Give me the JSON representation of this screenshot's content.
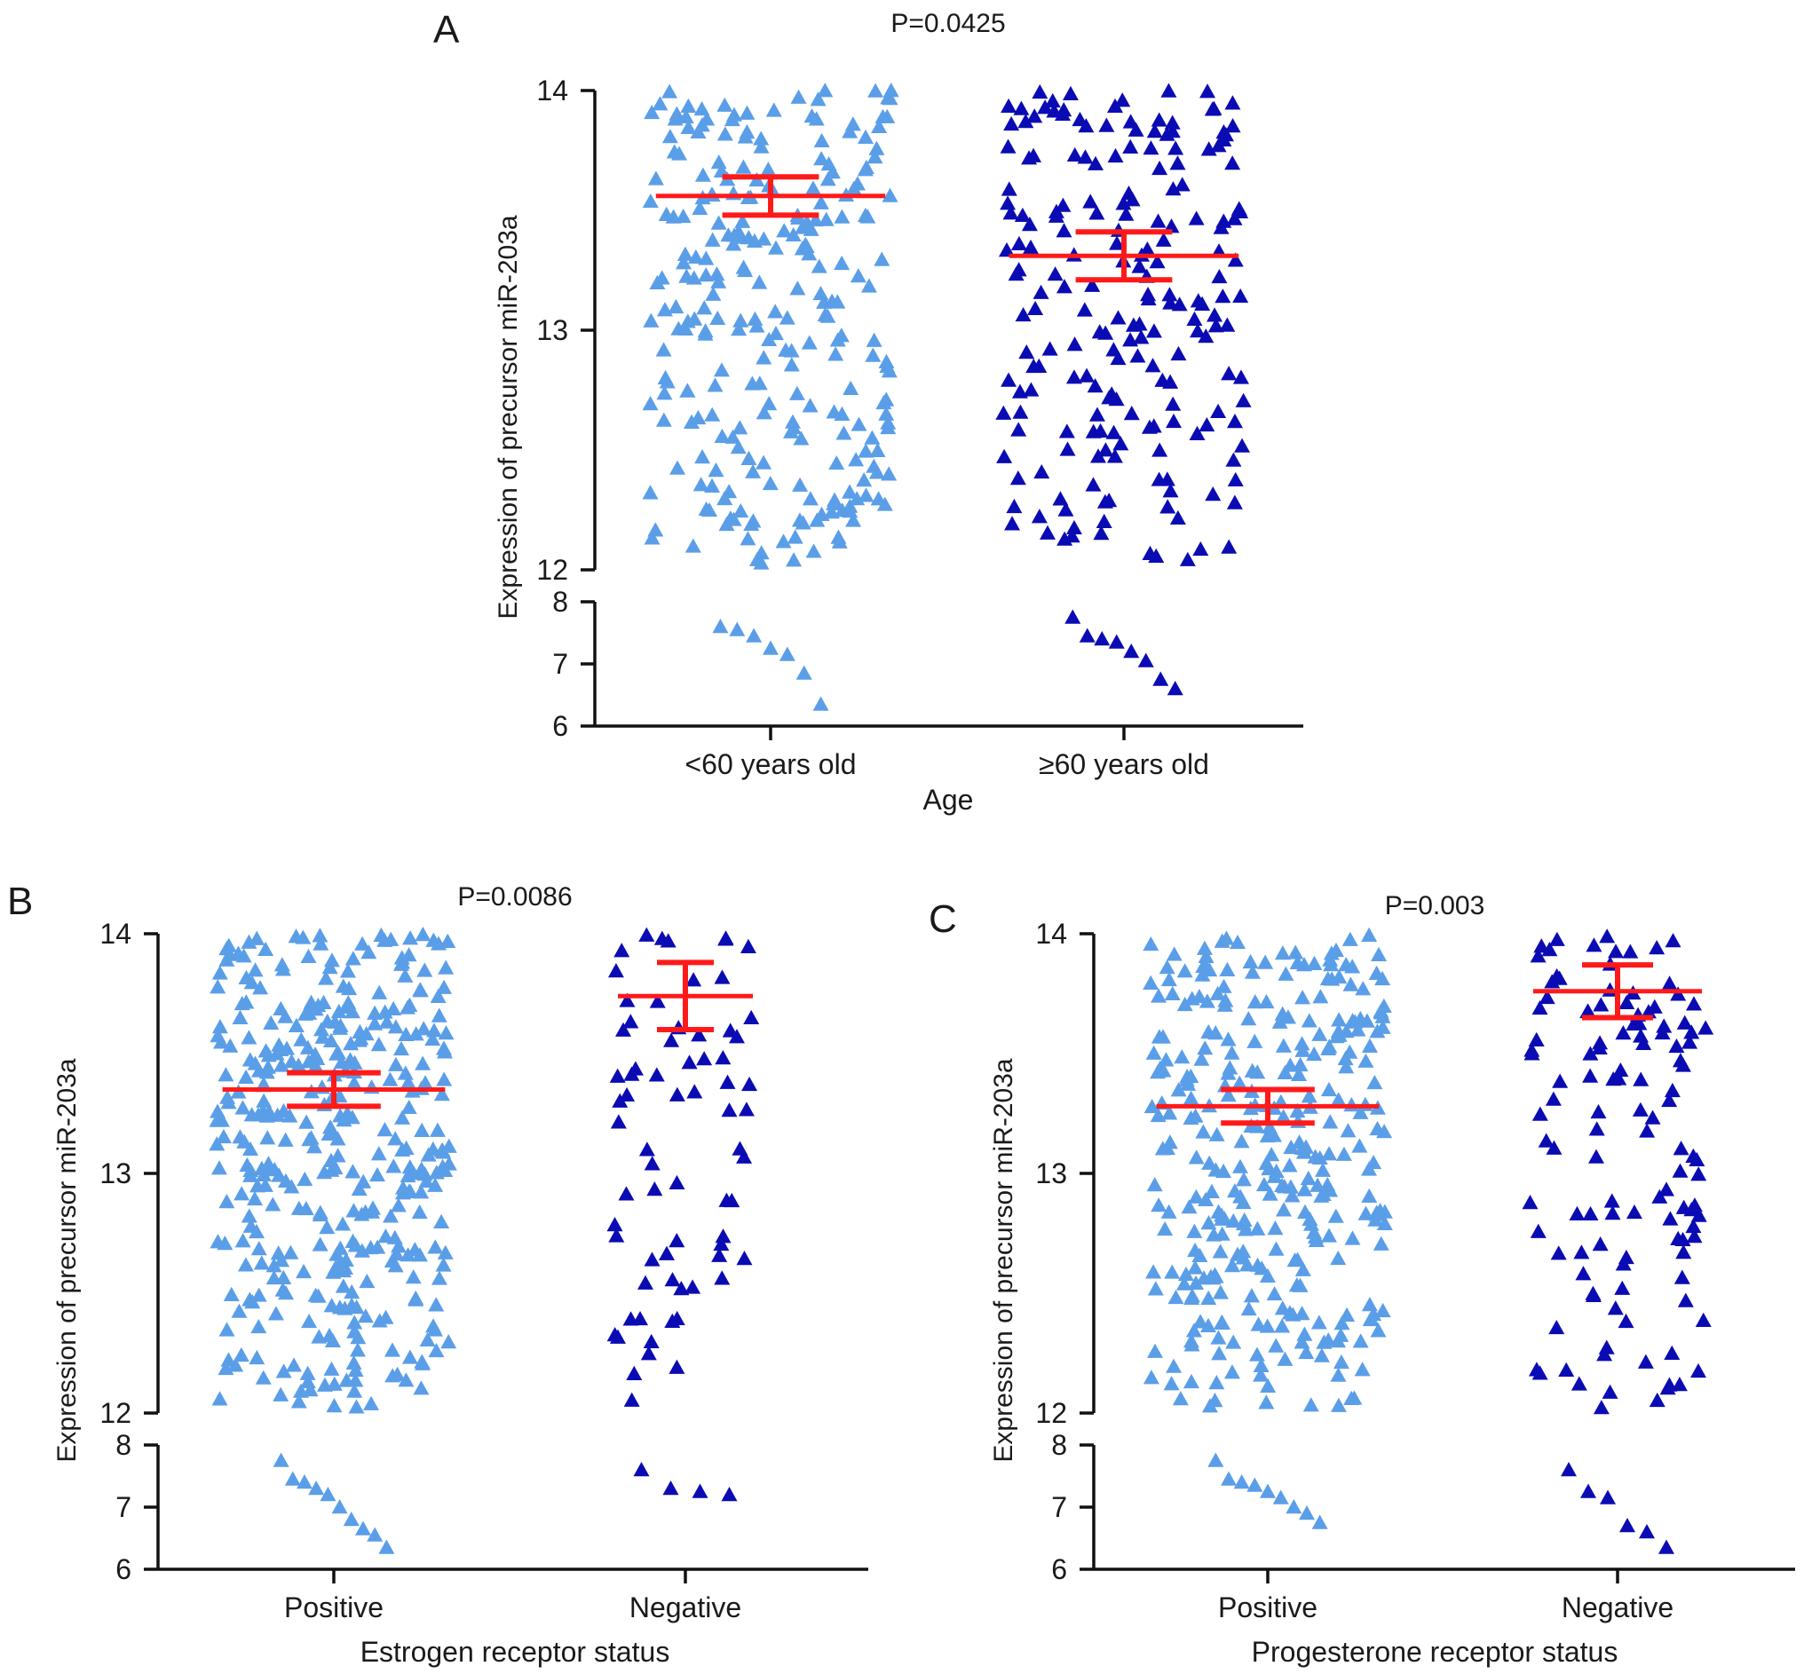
{
  "chart_data": [
    {
      "panel": "A",
      "type": "scatter",
      "title": "P=0.0425",
      "xlabel": "Age",
      "ylabel": "Expression of precursor miR-203a",
      "categories": [
        "<60 years old",
        "≥60 years old"
      ],
      "y_ticks_upper": [
        "12",
        "13",
        "14"
      ],
      "y_ticks_lower": [
        "6",
        "7",
        "8"
      ],
      "ylim_upper": [
        12,
        14
      ],
      "ylim_lower": [
        6,
        8
      ],
      "series": [
        {
          "name": "<60 years old",
          "color": "#5b9ee8",
          "n_upper": 260,
          "low_values": [
            7.6,
            7.55,
            7.45,
            7.25,
            7.15,
            6.85,
            6.35
          ],
          "mean": 13.56,
          "sem": 0.08
        },
        {
          "name": "≥60 years old",
          "color": "#0b0bb4",
          "n_upper": 200,
          "low_values": [
            7.75,
            7.45,
            7.4,
            7.35,
            7.2,
            7.05,
            6.75,
            6.6
          ],
          "mean": 13.31,
          "sem": 0.1
        }
      ]
    },
    {
      "panel": "B",
      "type": "scatter",
      "title": "P=0.0086",
      "xlabel": "Estrogen receptor status",
      "ylabel": "Expression of precursor miR-203a",
      "categories": [
        "Positive",
        "Negative"
      ],
      "y_ticks_upper": [
        "12",
        "13",
        "14"
      ],
      "y_ticks_lower": [
        "6",
        "7",
        "8"
      ],
      "ylim_upper": [
        12,
        14
      ],
      "ylim_lower": [
        6,
        8
      ],
      "series": [
        {
          "name": "Positive",
          "color": "#5b9ee8",
          "n_upper": 380,
          "low_values": [
            7.75,
            7.45,
            7.4,
            7.3,
            7.2,
            7.0,
            6.8,
            6.65,
            6.55,
            6.35
          ],
          "mean": 13.35,
          "sem": 0.07
        },
        {
          "name": "Negative",
          "color": "#0b0bb4",
          "n_upper": 70,
          "low_values": [
            7.6,
            7.3,
            7.25,
            7.2
          ],
          "mean": 13.74,
          "sem": 0.14
        }
      ]
    },
    {
      "panel": "C",
      "type": "scatter",
      "title": "P=0.003",
      "xlabel": "Progesterone receptor status",
      "ylabel": "Expression of precursor miR-203a",
      "categories": [
        "Positive",
        "Negative"
      ],
      "y_ticks_upper": [
        "12",
        "13",
        "14"
      ],
      "y_ticks_lower": [
        "6",
        "7",
        "8"
      ],
      "ylim_upper": [
        12,
        14
      ],
      "ylim_lower": [
        6,
        8
      ],
      "series": [
        {
          "name": "Positive",
          "color": "#5b9ee8",
          "n_upper": 340,
          "low_values": [
            7.75,
            7.45,
            7.4,
            7.35,
            7.25,
            7.15,
            7.0,
            6.9,
            6.75
          ],
          "mean": 13.28,
          "sem": 0.07
        },
        {
          "name": "Negative",
          "color": "#0b0bb4",
          "n_upper": 120,
          "low_values": [
            7.6,
            7.25,
            7.15,
            6.7,
            6.6,
            6.35
          ],
          "mean": 13.76,
          "sem": 0.11
        }
      ]
    }
  ]
}
